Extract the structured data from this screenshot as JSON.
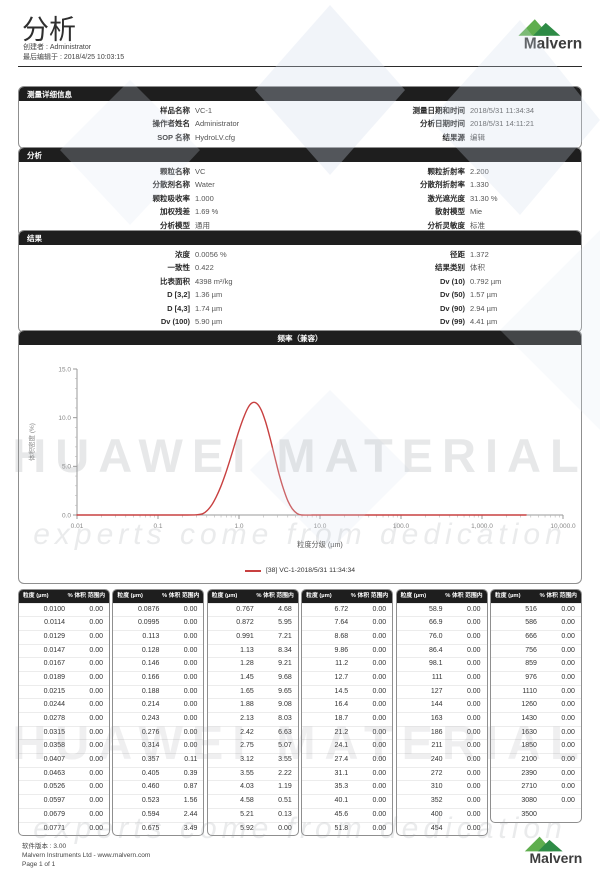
{
  "header": {
    "title": "分析",
    "creator": "创建者 : Administrator",
    "last_edited": "最后编辑于 : 2018/4/25 10:03:15"
  },
  "brand": {
    "name": "Malvern",
    "green_light": "#5fae4e",
    "green_dark": "#2e8b46",
    "text_color": "#3d3d3d"
  },
  "sections": {
    "measurement": {
      "title": "测量详细信息",
      "left": [
        [
          "样品名称",
          "VC-1"
        ],
        [
          "操作者姓名",
          "Administrator"
        ],
        [
          "SOP 名称",
          "HydroLV.cfg"
        ]
      ],
      "right": [
        [
          "测量日期和时间",
          "2018/5/31 11:34:34"
        ],
        [
          "分析日期时间",
          "2018/5/31 14:11:21"
        ],
        [
          "结果源",
          "编辑"
        ]
      ]
    },
    "analysis": {
      "title": "分析",
      "left": [
        [
          "颗粒名称",
          "VC"
        ],
        [
          "分散剂名称",
          "Water"
        ],
        [
          "颗粒吸收率",
          "1.000"
        ],
        [
          "加权残差",
          "1.69 %"
        ],
        [
          "分析模型",
          "通用"
        ]
      ],
      "right": [
        [
          "颗粒折射率",
          "2.200"
        ],
        [
          "分散剂折射率",
          "1.330"
        ],
        [
          "激光遮光度",
          "31.30 %"
        ],
        [
          "散射模型",
          "Mie"
        ],
        [
          "分析灵敏度",
          "标准"
        ]
      ]
    },
    "results": {
      "title": "结果",
      "left": [
        [
          "浓度",
          "0.0056 %"
        ],
        [
          "一致性",
          "0.422"
        ],
        [
          "比表面积",
          "4398 m²/kg"
        ],
        [
          "D [3,2]",
          "1.36 µm"
        ],
        [
          "D [4,3]",
          "1.74 µm"
        ],
        [
          "Dv (100)",
          "5.90 µm"
        ]
      ],
      "right": [
        [
          "径距",
          "1.372"
        ],
        [
          "结果类别",
          "体积"
        ],
        [
          "Dv (10)",
          "0.792 µm"
        ],
        [
          "Dv (50)",
          "1.57 µm"
        ],
        [
          "Dv (90)",
          "2.94 µm"
        ],
        [
          "Dv (99)",
          "4.41 µm"
        ]
      ]
    }
  },
  "chart": {
    "panel_title": "频率（兼容）",
    "legend": "[38] VC-1-2018/5/31 11:34:34",
    "line_color": "#c84040"
  },
  "chart_data": {
    "type": "line",
    "title": "频率（兼容）",
    "xlabel": "粒度分级 (µm)",
    "ylabel": "体积密度 (%)",
    "xscale": "log",
    "xlim": [
      0.01,
      10000
    ],
    "ylim": [
      0,
      15
    ],
    "grid": false,
    "legend_position": "bottom",
    "xticks": {
      "values": [
        0.01,
        0.1,
        1,
        10,
        100,
        1000,
        10000
      ],
      "labels": [
        "0.01",
        "0.1",
        "1.0",
        "10.0",
        "100.0",
        "1,000.0",
        "10,000.0"
      ]
    },
    "yticks": {
      "values": [
        0,
        5,
        10,
        15
      ],
      "labels": [
        "0.0",
        "5.0",
        "10.0",
        "15.0"
      ]
    },
    "series": [
      {
        "name": "[38] VC-1-2018/5/31 11:34:34",
        "color": "#c84040",
        "x": [
          0.01,
          0.05,
          0.1,
          0.2,
          0.3,
          0.357,
          0.405,
          0.46,
          0.523,
          0.594,
          0.675,
          0.767,
          0.872,
          0.991,
          1.13,
          1.28,
          1.45,
          1.65,
          1.88,
          2.13,
          2.42,
          2.75,
          3.12,
          3.55,
          4.03,
          4.58,
          5.21,
          5.92,
          8,
          10,
          100,
          1000,
          3500
        ],
        "y": [
          0,
          0,
          0,
          0,
          0.02,
          0.13,
          0.46,
          1.03,
          1.86,
          2.9,
          4.15,
          5.57,
          7.08,
          8.58,
          9.92,
          10.96,
          11.52,
          11.48,
          10.8,
          9.56,
          7.89,
          6.03,
          4.22,
          2.64,
          1.42,
          0.61,
          0.15,
          0,
          0,
          0,
          0,
          0,
          0
        ]
      }
    ]
  },
  "tables": {
    "header_size": "粒度 (µm)",
    "header_pct": "% 体积 范围内",
    "columns": [
      [
        [
          "0.0100",
          "0.00"
        ],
        [
          "0.0114",
          "0.00"
        ],
        [
          "0.0129",
          "0.00"
        ],
        [
          "0.0147",
          "0.00"
        ],
        [
          "0.0167",
          "0.00"
        ],
        [
          "0.0189",
          "0.00"
        ],
        [
          "0.0215",
          "0.00"
        ],
        [
          "0.0244",
          "0.00"
        ],
        [
          "0.0278",
          "0.00"
        ],
        [
          "0.0315",
          "0.00"
        ],
        [
          "0.0358",
          "0.00"
        ],
        [
          "0.0407",
          "0.00"
        ],
        [
          "0.0463",
          "0.00"
        ],
        [
          "0.0526",
          "0.00"
        ],
        [
          "0.0597",
          "0.00"
        ],
        [
          "0.0679",
          "0.00"
        ],
        [
          "0.0771",
          "0.00"
        ]
      ],
      [
        [
          "0.0876",
          "0.00"
        ],
        [
          "0.0995",
          "0.00"
        ],
        [
          "0.113",
          "0.00"
        ],
        [
          "0.128",
          "0.00"
        ],
        [
          "0.146",
          "0.00"
        ],
        [
          "0.166",
          "0.00"
        ],
        [
          "0.188",
          "0.00"
        ],
        [
          "0.214",
          "0.00"
        ],
        [
          "0.243",
          "0.00"
        ],
        [
          "0.276",
          "0.00"
        ],
        [
          "0.314",
          "0.00"
        ],
        [
          "0.357",
          "0.11"
        ],
        [
          "0.405",
          "0.39"
        ],
        [
          "0.460",
          "0.87"
        ],
        [
          "0.523",
          "1.56"
        ],
        [
          "0.594",
          "2.44"
        ],
        [
          "0.675",
          "3.49"
        ]
      ],
      [
        [
          "0.767",
          "4.68"
        ],
        [
          "0.872",
          "5.95"
        ],
        [
          "0.991",
          "7.21"
        ],
        [
          "1.13",
          "8.34"
        ],
        [
          "1.28",
          "9.21"
        ],
        [
          "1.45",
          "9.68"
        ],
        [
          "1.65",
          "9.65"
        ],
        [
          "1.88",
          "9.08"
        ],
        [
          "2.13",
          "8.03"
        ],
        [
          "2.42",
          "6.63"
        ],
        [
          "2.75",
          "5.07"
        ],
        [
          "3.12",
          "3.55"
        ],
        [
          "3.55",
          "2.22"
        ],
        [
          "4.03",
          "1.19"
        ],
        [
          "4.58",
          "0.51"
        ],
        [
          "5.21",
          "0.13"
        ],
        [
          "5.92",
          "0.00"
        ]
      ],
      [
        [
          "6.72",
          "0.00"
        ],
        [
          "7.64",
          "0.00"
        ],
        [
          "8.68",
          "0.00"
        ],
        [
          "9.86",
          "0.00"
        ],
        [
          "11.2",
          "0.00"
        ],
        [
          "12.7",
          "0.00"
        ],
        [
          "14.5",
          "0.00"
        ],
        [
          "16.4",
          "0.00"
        ],
        [
          "18.7",
          "0.00"
        ],
        [
          "21.2",
          "0.00"
        ],
        [
          "24.1",
          "0.00"
        ],
        [
          "27.4",
          "0.00"
        ],
        [
          "31.1",
          "0.00"
        ],
        [
          "35.3",
          "0.00"
        ],
        [
          "40.1",
          "0.00"
        ],
        [
          "45.6",
          "0.00"
        ],
        [
          "51.8",
          "0.00"
        ]
      ],
      [
        [
          "58.9",
          "0.00"
        ],
        [
          "66.9",
          "0.00"
        ],
        [
          "76.0",
          "0.00"
        ],
        [
          "86.4",
          "0.00"
        ],
        [
          "98.1",
          "0.00"
        ],
        [
          "111",
          "0.00"
        ],
        [
          "127",
          "0.00"
        ],
        [
          "144",
          "0.00"
        ],
        [
          "163",
          "0.00"
        ],
        [
          "186",
          "0.00"
        ],
        [
          "211",
          "0.00"
        ],
        [
          "240",
          "0.00"
        ],
        [
          "272",
          "0.00"
        ],
        [
          "310",
          "0.00"
        ],
        [
          "352",
          "0.00"
        ],
        [
          "400",
          "0.00"
        ],
        [
          "454",
          "0.00"
        ]
      ],
      [
        [
          "516",
          "0.00"
        ],
        [
          "586",
          "0.00"
        ],
        [
          "666",
          "0.00"
        ],
        [
          "756",
          "0.00"
        ],
        [
          "859",
          "0.00"
        ],
        [
          "976",
          "0.00"
        ],
        [
          "1110",
          "0.00"
        ],
        [
          "1260",
          "0.00"
        ],
        [
          "1430",
          "0.00"
        ],
        [
          "1630",
          "0.00"
        ],
        [
          "1850",
          "0.00"
        ],
        [
          "2100",
          "0.00"
        ],
        [
          "2390",
          "0.00"
        ],
        [
          "2710",
          "0.00"
        ],
        [
          "3080",
          "0.00"
        ],
        [
          "3500",
          null
        ]
      ]
    ]
  },
  "footer": {
    "software_version": "软件版本 :  3.00",
    "company": "Malvern Instruments Ltd - www.malvern.com",
    "page": "Page 1 of 1"
  },
  "watermark": {
    "line1": "HUAWEI MATERIAL",
    "line2": "experts come from dedication"
  }
}
